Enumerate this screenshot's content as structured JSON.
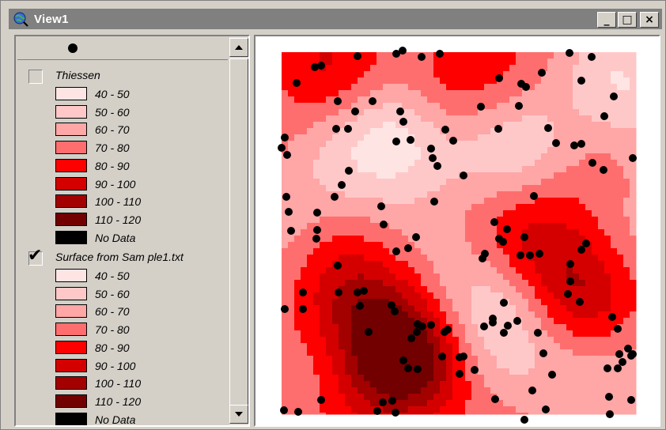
{
  "window": {
    "title": "View1",
    "app_icon": "globe-magnifier-icon",
    "controls": {
      "minimize_glyph": "_",
      "maximize_glyph": "□",
      "close_glyph": "×"
    }
  },
  "toc": {
    "header_symbol": "point-symbol",
    "themes": [
      {
        "name": "Thiessen",
        "visible": false,
        "classes": [
          {
            "label": "40 - 50",
            "color": "#ffe4e4"
          },
          {
            "label": "50 - 60",
            "color": "#ffc8c8"
          },
          {
            "label": "60 - 70",
            "color": "#ffa6a6"
          },
          {
            "label": "70 - 80",
            "color": "#ff6e6e"
          },
          {
            "label": "80 - 90",
            "color": "#ff0000"
          },
          {
            "label": "90 - 100",
            "color": "#d40000"
          },
          {
            "label": "100 - 110",
            "color": "#a30000"
          },
          {
            "label": "110 - 120",
            "color": "#720000"
          },
          {
            "label": "No Data",
            "color": "#000000"
          }
        ]
      },
      {
        "name": "Surface from  Sam ple1.txt",
        "visible": true,
        "classes": [
          {
            "label": "40 - 50",
            "color": "#ffe4e4"
          },
          {
            "label": "50 - 60",
            "color": "#ffc8c8"
          },
          {
            "label": "60 - 70",
            "color": "#ffa6a6"
          },
          {
            "label": "70 - 80",
            "color": "#ff6e6e"
          },
          {
            "label": "80 - 90",
            "color": "#ff0000"
          },
          {
            "label": "90 - 100",
            "color": "#d40000"
          },
          {
            "label": "100 - 110",
            "color": "#a30000"
          },
          {
            "label": "110 - 120",
            "color": "#720000"
          },
          {
            "label": "No Data",
            "color": "#000000"
          }
        ]
      }
    ],
    "check_glyph": "✔"
  },
  "map": {
    "background": "#ffffff",
    "point_color": "#000000"
  }
}
